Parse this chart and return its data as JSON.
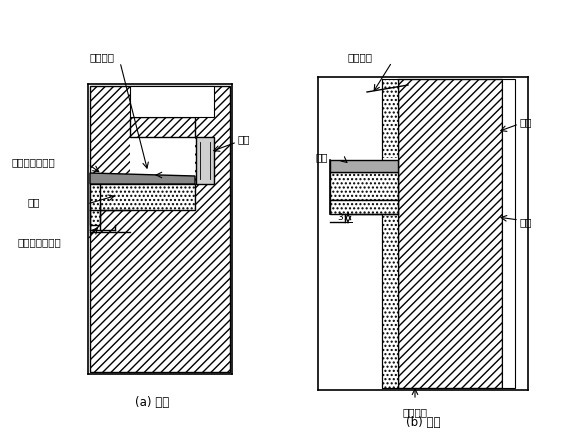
{
  "title_a": "(a) 窗台",
  "title_b": "(b) 腰线",
  "label_liushuipodu_a": "流水坡度",
  "label_chuangkuang": "窗框",
  "label_dingmianzhuan": "顶面砖压立面砖",
  "label_chuangtai": "窗台",
  "label_shuini": "水泥沙浆滴水线",
  "label_liushuipodu_b1": "流水坡度",
  "label_gaizuan": "盖砖",
  "label_yaoxian": "腰线",
  "label_jiti": "基体",
  "label_liushuipodu_b2": "流水坡度"
}
